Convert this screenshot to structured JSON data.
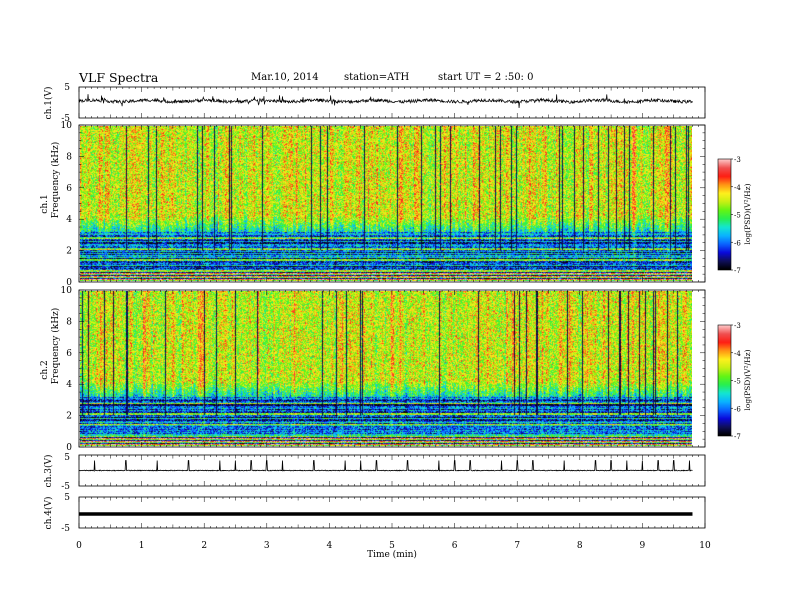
{
  "header": {
    "title": "VLF  Spectra",
    "date": "Mar.10, 2014",
    "station": "station=ATH",
    "start": "start  UT  =   2 :50: 0"
  },
  "colorbar_1": {
    "label": "log(PSD)(V²/Hz)",
    "ticks": [
      "-3",
      "-4",
      "-5",
      "-6",
      "-7"
    ]
  },
  "colorbar_2": {
    "label": "log(PSD)(V²/Hz)",
    "ticks": [
      "-3",
      "-4",
      "-5",
      "-6",
      "-7"
    ]
  },
  "colormap": [
    "#000000",
    "#10105a",
    "#0a0adc",
    "#0a64ff",
    "#0ab4ff",
    "#14e6d2",
    "#28f050",
    "#64f514",
    "#c8f014",
    "#fff01e",
    "#ff9614",
    "#ff1e14",
    "#f05050",
    "#ffc8c8"
  ],
  "trace_color": "#000000",
  "chart_data": [
    {
      "type": "line",
      "panel": "ch1-waveform",
      "ylabel": "ch.1(V)",
      "ylim": [
        -5,
        5
      ],
      "yticks": [
        "5",
        "-5"
      ],
      "xlim": [
        0,
        10
      ],
      "values_desc": "broadband noise around +0.5 V with occasional spikes",
      "baseline": 0.5
    },
    {
      "type": "heatmap",
      "panel": "ch1-spectrogram",
      "ylabel_channel": "ch.1",
      "ylabel": "Frequency  (kHz)",
      "ylim": [
        0,
        10
      ],
      "yticks": [
        "0",
        "2",
        "4",
        "6",
        "8",
        "10"
      ],
      "xlim": [
        0,
        10
      ],
      "zlim": [
        -7,
        -3
      ],
      "zlabel": "log(PSD)(V²/Hz)"
    },
    {
      "type": "heatmap",
      "panel": "ch2-spectrogram",
      "ylabel_channel": "ch.2",
      "ylabel": "Frequency  (kHz)",
      "ylim": [
        0,
        10
      ],
      "yticks": [
        "0",
        "2",
        "4",
        "6",
        "8",
        "10"
      ],
      "xlim": [
        0,
        10
      ],
      "zlim": [
        -7,
        -3
      ],
      "zlabel": "log(PSD)(V²/Hz)"
    },
    {
      "type": "line",
      "panel": "ch3-waveform",
      "ylabel": "ch.3(V)",
      "ylim": [
        -5,
        5
      ],
      "yticks": [
        "5",
        "-5"
      ],
      "xlim": [
        0,
        10
      ],
      "baseline": 0.0,
      "spike_times_min": [
        0.25,
        0.75,
        1.25,
        1.75,
        2.25,
        2.5,
        2.75,
        3.0,
        3.25,
        3.75,
        4.25,
        4.5,
        4.75,
        5.25,
        5.75,
        6.0,
        6.25,
        6.75,
        7.0,
        7.25,
        7.75,
        8.25,
        8.5,
        8.75,
        9.0,
        9.25,
        9.5,
        9.75
      ]
    },
    {
      "type": "line",
      "panel": "ch4-waveform",
      "ylabel": "ch.4(V)",
      "ylim": [
        -5,
        5
      ],
      "yticks": [
        "5",
        "-5"
      ],
      "xlim": [
        0,
        10
      ],
      "baseline": -0.5
    }
  ],
  "xaxis": {
    "label": "Time  (min)",
    "ticks": [
      "0",
      "1",
      "2",
      "3",
      "4",
      "5",
      "6",
      "7",
      "8",
      "9",
      "10"
    ]
  }
}
